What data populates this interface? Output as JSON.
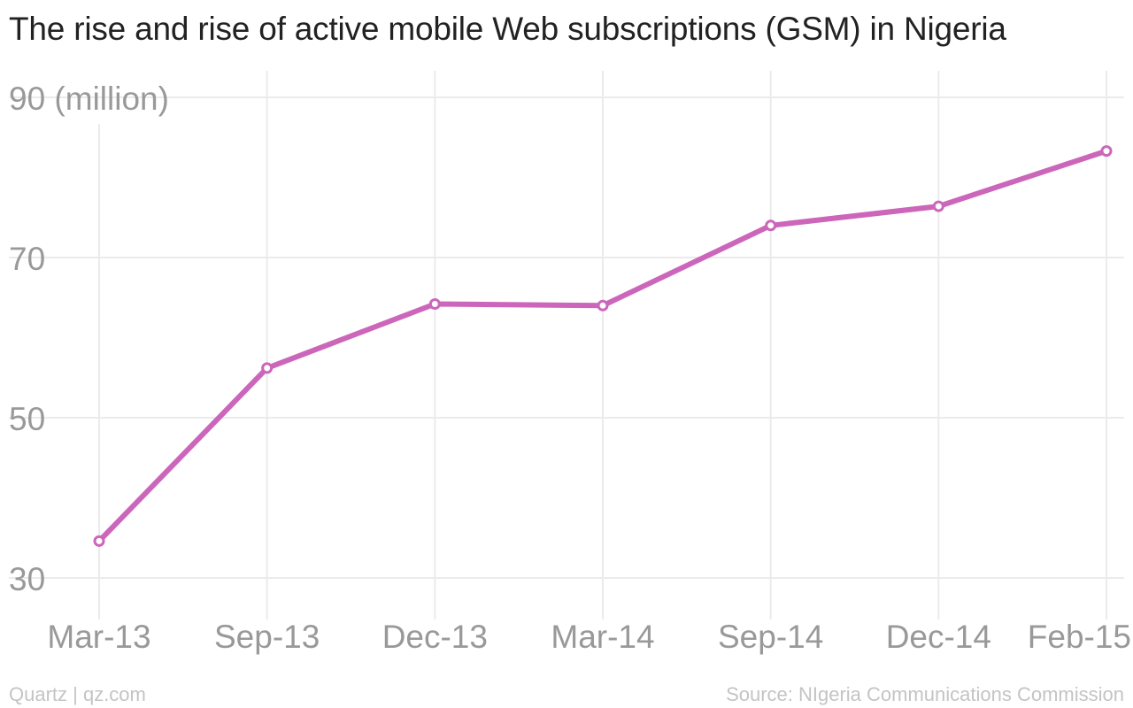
{
  "title": "The rise and rise of active mobile Web subscriptions (GSM) in Nigeria",
  "footer": {
    "credit": "Quartz | qz.com",
    "source": "Source: NIgeria Communications Commission"
  },
  "colors": {
    "series": "#cc66bb",
    "grid": "#ebebeb",
    "tick_text": "#999999"
  },
  "chart_data": {
    "type": "line",
    "title": "The rise and rise of active mobile Web subscriptions (GSM) in Nigeria",
    "xlabel": "",
    "ylabel": "",
    "y_unit_label": "90 (million)",
    "categories": [
      "Mar-13",
      "Sep-13",
      "Dec-13",
      "Mar-14",
      "Sep-14",
      "Dec-14",
      "Feb-15"
    ],
    "series": [
      {
        "values": [
          34.6,
          56.2,
          64.2,
          64.0,
          74.0,
          76.4,
          83.3
        ]
      }
    ],
    "ylim": [
      30,
      90
    ],
    "yticks": [
      30,
      50,
      70,
      90
    ],
    "ytick_labels": [
      "30",
      "50",
      "70",
      "90 (million)"
    ],
    "grid": true,
    "legend": "none"
  }
}
